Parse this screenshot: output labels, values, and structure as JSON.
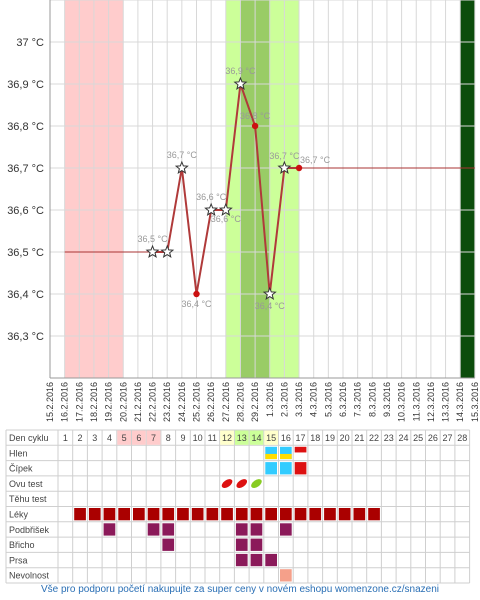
{
  "chart_data": {
    "type": "line",
    "title": "",
    "xlabel": "",
    "ylabel": "",
    "ylim": [
      36.2,
      37.1
    ],
    "y_ticks": [
      36.3,
      36.4,
      36.5,
      36.6,
      36.7,
      36.8,
      36.9,
      37.0
    ],
    "y_tick_labels": [
      "36,3 °C",
      "36,4 °C",
      "36,5 °C",
      "36,6 °C",
      "36,7 °C",
      "36,8 °C",
      "36,9 °C",
      "37 °C"
    ],
    "dates": [
      "15.2.2016",
      "16.2.2016",
      "17.2.2016",
      "18.2.2016",
      "19.2.2016",
      "20.2.2016",
      "21.2.2016",
      "22.2.2016",
      "23.2.2016",
      "24.2.2016",
      "25.2.2016",
      "26.2.2016",
      "27.2.2016",
      "28.2.2016",
      "29.2.2016",
      "1.3.2016",
      "2.3.2016",
      "3.3.2016",
      "4.3.2016",
      "5.3.2016",
      "6.3.2016",
      "7.3.2016",
      "8.3.2016",
      "9.3.2016",
      "10.3.2016",
      "11.3.2016",
      "12.3.2016",
      "13.3.2016",
      "14.3.2016",
      "15.3.2016"
    ],
    "series": [
      {
        "points": [
          {
            "day": 7,
            "value": 36.5,
            "marker": "star",
            "label": "36,5 °C"
          },
          {
            "day": 8,
            "value": 36.5,
            "marker": "star",
            "label": ""
          },
          {
            "day": 9,
            "value": 36.7,
            "marker": "star",
            "label": "36,7 °C"
          },
          {
            "day": 10,
            "value": 36.4,
            "marker": "dot",
            "label": "36,4 °C"
          },
          {
            "day": 11,
            "value": 36.6,
            "marker": "star",
            "label": "36,6 °C"
          },
          {
            "day": 12,
            "value": 36.6,
            "marker": "star",
            "label": "36,6 °C"
          },
          {
            "day": 13,
            "value": 36.9,
            "marker": "star",
            "label": "36,9 °C"
          },
          {
            "day": 14,
            "value": 36.8,
            "marker": "dot",
            "label": "36,8 °C"
          },
          {
            "day": 15,
            "value": 36.4,
            "marker": "star",
            "label": "36,4 °C"
          },
          {
            "day": 16,
            "value": 36.7,
            "marker": "star",
            "label": "36,7 °C"
          },
          {
            "day": 17,
            "value": 36.7,
            "marker": "dot",
            "label": "36,7 °C"
          }
        ]
      }
    ],
    "baseline_before": {
      "from_day": 1,
      "to_day": 7,
      "value": 36.5
    },
    "baseline_after": {
      "from_day": 17,
      "to_day": 29,
      "value": 36.7
    },
    "bands": [
      {
        "from_day": 1,
        "to_day": 5,
        "color": "#ffcccc",
        "meaning": "menstruation"
      },
      {
        "from_day": 12,
        "to_day": 17,
        "color": "#ccff99",
        "meaning": "fertile window"
      },
      {
        "from_day": 13,
        "to_day": 15,
        "color": "#99cc66",
        "meaning": "ovulation"
      },
      {
        "from_day": 28,
        "to_day": 29,
        "color": "#0b4d0b",
        "meaning": "today"
      }
    ],
    "grid": true,
    "legend": "none"
  },
  "table": {
    "header_label": "Den cyklu",
    "days": [
      "1",
      "2",
      "3",
      "4",
      "5",
      "6",
      "7",
      "8",
      "9",
      "10",
      "11",
      "12",
      "13",
      "14",
      "15",
      "16",
      "17",
      "18",
      "19",
      "20",
      "21",
      "22",
      "23",
      "24",
      "25",
      "26",
      "27",
      "28"
    ],
    "rows": [
      {
        "label": "Hlen",
        "cells": [
          {
            "day": 15,
            "color": "#33ccff"
          },
          {
            "day": 16,
            "color": "#33ccff"
          },
          {
            "day": 15,
            "color": "#ffdd00",
            "half": "bottom"
          },
          {
            "day": 16,
            "color": "#ffdd00",
            "half": "bottom"
          },
          {
            "day": 17,
            "color": "#dd1111",
            "half": "top"
          }
        ]
      },
      {
        "label": "Čípek",
        "cells": [
          {
            "day": 15,
            "color": "#33ccff"
          },
          {
            "day": 16,
            "color": "#33ccff"
          },
          {
            "day": 17,
            "color": "#dd1111"
          }
        ]
      },
      {
        "label": "Ovu test",
        "cells": [
          {
            "day": 12,
            "color": "#dd1111",
            "shape": "leaf"
          },
          {
            "day": 13,
            "color": "#dd1111",
            "shape": "leaf"
          },
          {
            "day": 14,
            "color": "#88cc22",
            "shape": "leaf"
          }
        ]
      },
      {
        "label": "Těhu test",
        "cells": []
      },
      {
        "label": "Léky",
        "cells": [
          {
            "day": 2,
            "color": "#aa0000"
          },
          {
            "day": 3,
            "color": "#aa0000"
          },
          {
            "day": 4,
            "color": "#aa0000"
          },
          {
            "day": 5,
            "color": "#aa0000"
          },
          {
            "day": 6,
            "color": "#aa0000"
          },
          {
            "day": 7,
            "color": "#aa0000"
          },
          {
            "day": 8,
            "color": "#aa0000"
          },
          {
            "day": 9,
            "color": "#aa0000"
          },
          {
            "day": 10,
            "color": "#aa0000"
          },
          {
            "day": 11,
            "color": "#aa0000"
          },
          {
            "day": 12,
            "color": "#aa0000"
          },
          {
            "day": 13,
            "color": "#aa0000"
          },
          {
            "day": 14,
            "color": "#aa0000"
          },
          {
            "day": 15,
            "color": "#aa0000"
          },
          {
            "day": 16,
            "color": "#aa0000"
          },
          {
            "day": 17,
            "color": "#aa0000"
          },
          {
            "day": 18,
            "color": "#aa0000"
          },
          {
            "day": 19,
            "color": "#aa0000"
          },
          {
            "day": 20,
            "color": "#aa0000"
          },
          {
            "day": 21,
            "color": "#aa0000"
          },
          {
            "day": 22,
            "color": "#aa0000"
          }
        ]
      },
      {
        "label": "Podbřišek",
        "cells": [
          {
            "day": 4,
            "color": "#8b1a5a"
          },
          {
            "day": 7,
            "color": "#8b1a5a"
          },
          {
            "day": 8,
            "color": "#8b1a5a"
          },
          {
            "day": 13,
            "color": "#8b1a5a"
          },
          {
            "day": 14,
            "color": "#8b1a5a"
          },
          {
            "day": 16,
            "color": "#8b1a5a"
          }
        ]
      },
      {
        "label": "Břicho",
        "cells": [
          {
            "day": 8,
            "color": "#8b1a5a"
          },
          {
            "day": 13,
            "color": "#8b1a5a"
          },
          {
            "day": 14,
            "color": "#8b1a5a"
          }
        ]
      },
      {
        "label": "Prsa",
        "cells": [
          {
            "day": 13,
            "color": "#8b1a5a"
          },
          {
            "day": 14,
            "color": "#8b1a5a"
          },
          {
            "day": 15,
            "color": "#8b1a5a"
          }
        ]
      },
      {
        "label": "Nevolnost",
        "cells": [
          {
            "day": 16,
            "color": "#f5a08a"
          }
        ]
      }
    ]
  },
  "footer": {
    "text": "Vše pro podporu početí nakupujte za super ceny v novém eshopu womenzone.cz/snazeni"
  }
}
